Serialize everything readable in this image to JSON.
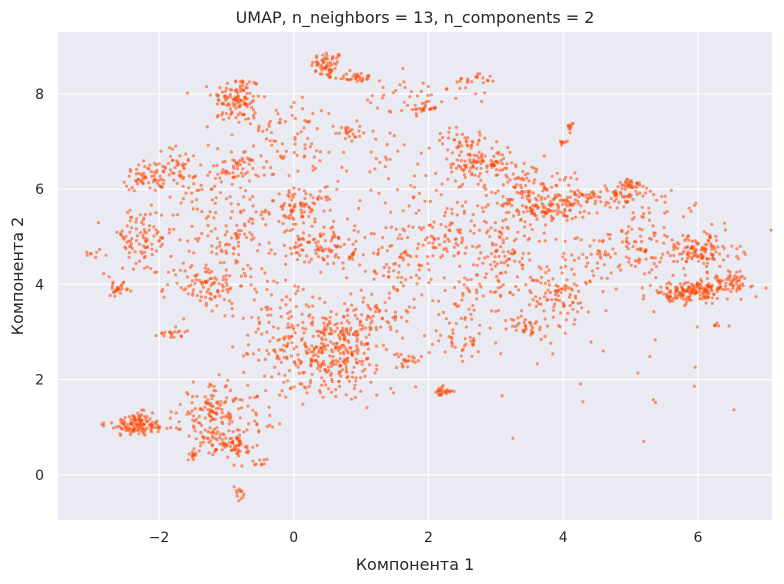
{
  "chart_data": {
    "type": "scatter",
    "title": "UMAP, n_neighbors = 13, n_components = 2",
    "xlabel": "Компонента 1",
    "ylabel": "Компонента 2",
    "xlim": [
      -3.5,
      7.1
    ],
    "ylim": [
      -0.95,
      9.3
    ],
    "xticks": [
      -2,
      0,
      2,
      4,
      6
    ],
    "yticks": [
      0,
      2,
      4,
      6,
      8
    ],
    "xtick_labels": [
      "−2",
      "0",
      "2",
      "4",
      "6"
    ],
    "ytick_labels": [
      "0",
      "2",
      "4",
      "6",
      "8"
    ],
    "grid": true,
    "background_color": "#eaeaf2",
    "point_color": "#ff4500",
    "clusters": [
      {
        "cx": 0.5,
        "cy": 8.6,
        "sx": 0.12,
        "sy": 0.15,
        "n": 60
      },
      {
        "cx": 0.9,
        "cy": 8.35,
        "sx": 0.15,
        "sy": 0.05,
        "n": 30
      },
      {
        "cx": -0.85,
        "cy": 7.9,
        "sx": 0.18,
        "sy": 0.25,
        "n": 110
      },
      {
        "cx": 2.7,
        "cy": 8.3,
        "sx": 0.15,
        "sy": 0.08,
        "n": 20
      },
      {
        "cx": 1.9,
        "cy": 7.7,
        "sx": 0.12,
        "sy": 0.06,
        "n": 25
      },
      {
        "cx": 0.8,
        "cy": 7.2,
        "sx": 0.1,
        "sy": 0.1,
        "n": 25
      },
      {
        "cx": -1.8,
        "cy": 6.5,
        "sx": 0.2,
        "sy": 0.2,
        "n": 50
      },
      {
        "cx": -2.2,
        "cy": 6.2,
        "sx": 0.15,
        "sy": 0.12,
        "n": 45
      },
      {
        "cx": -0.9,
        "cy": 6.4,
        "sx": 0.2,
        "sy": 0.15,
        "n": 40
      },
      {
        "cx": 0.1,
        "cy": 5.6,
        "sx": 0.25,
        "sy": 0.2,
        "n": 90
      },
      {
        "cx": 0.4,
        "cy": 4.8,
        "sx": 0.25,
        "sy": 0.2,
        "n": 90
      },
      {
        "cx": -0.8,
        "cy": 5.0,
        "sx": 0.3,
        "sy": 0.35,
        "n": 80
      },
      {
        "cx": -2.3,
        "cy": 4.9,
        "sx": 0.25,
        "sy": 0.35,
        "n": 100
      },
      {
        "cx": -2.6,
        "cy": 3.9,
        "sx": 0.08,
        "sy": 0.06,
        "n": 25
      },
      {
        "cx": -1.3,
        "cy": 4.0,
        "sx": 0.3,
        "sy": 0.25,
        "n": 100
      },
      {
        "cx": -1.8,
        "cy": 3.0,
        "sx": 0.1,
        "sy": 0.08,
        "n": 20
      },
      {
        "cx": 0.5,
        "cy": 2.6,
        "sx": 0.45,
        "sy": 0.35,
        "n": 300
      },
      {
        "cx": 1.1,
        "cy": 3.3,
        "sx": 0.35,
        "sy": 0.25,
        "n": 90
      },
      {
        "cx": 1.7,
        "cy": 2.4,
        "sx": 0.1,
        "sy": 0.06,
        "n": 20
      },
      {
        "cx": 2.2,
        "cy": 1.75,
        "sx": 0.08,
        "sy": 0.05,
        "n": 25
      },
      {
        "cx": 2.5,
        "cy": 2.8,
        "sx": 0.25,
        "sy": 0.2,
        "n": 40
      },
      {
        "cx": 1.4,
        "cy": 4.5,
        "sx": 0.4,
        "sy": 0.4,
        "n": 80
      },
      {
        "cx": 2.3,
        "cy": 5.0,
        "sx": 0.3,
        "sy": 0.4,
        "n": 80
      },
      {
        "cx": 2.8,
        "cy": 6.5,
        "sx": 0.25,
        "sy": 0.15,
        "n": 90
      },
      {
        "cx": 2.5,
        "cy": 7.0,
        "sx": 0.2,
        "sy": 0.12,
        "n": 40
      },
      {
        "cx": 3.5,
        "cy": 6.1,
        "sx": 0.35,
        "sy": 0.25,
        "n": 90
      },
      {
        "cx": 3.7,
        "cy": 5.6,
        "sx": 0.25,
        "sy": 0.15,
        "n": 90
      },
      {
        "cx": 4.6,
        "cy": 5.8,
        "sx": 0.35,
        "sy": 0.15,
        "n": 100
      },
      {
        "cx": 5.0,
        "cy": 6.1,
        "sx": 0.08,
        "sy": 0.06,
        "n": 30
      },
      {
        "cx": 4.1,
        "cy": 7.3,
        "sx": 0.03,
        "sy": 0.04,
        "n": 10
      },
      {
        "cx": 4.0,
        "cy": 7.0,
        "sx": 0.03,
        "sy": 0.03,
        "n": 8
      },
      {
        "cx": 3.2,
        "cy": 4.5,
        "sx": 0.4,
        "sy": 0.4,
        "n": 80
      },
      {
        "cx": 3.9,
        "cy": 3.7,
        "sx": 0.25,
        "sy": 0.25,
        "n": 80
      },
      {
        "cx": 3.5,
        "cy": 3.1,
        "sx": 0.15,
        "sy": 0.1,
        "n": 30
      },
      {
        "cx": 4.5,
        "cy": 4.5,
        "sx": 0.3,
        "sy": 0.3,
        "n": 50
      },
      {
        "cx": 5.1,
        "cy": 4.7,
        "sx": 0.25,
        "sy": 0.3,
        "n": 40
      },
      {
        "cx": 6.0,
        "cy": 4.7,
        "sx": 0.3,
        "sy": 0.2,
        "n": 130
      },
      {
        "cx": 6.1,
        "cy": 3.9,
        "sx": 0.3,
        "sy": 0.12,
        "n": 130
      },
      {
        "cx": 5.7,
        "cy": 3.8,
        "sx": 0.2,
        "sy": 0.1,
        "n": 60
      },
      {
        "cx": 6.55,
        "cy": 4.1,
        "sx": 0.1,
        "sy": 0.1,
        "n": 30
      },
      {
        "cx": -2.3,
        "cy": 1.05,
        "sx": 0.25,
        "sy": 0.12,
        "n": 130
      },
      {
        "cx": -1.2,
        "cy": 1.3,
        "sx": 0.25,
        "sy": 0.3,
        "n": 130
      },
      {
        "cx": -1.1,
        "cy": 0.7,
        "sx": 0.2,
        "sy": 0.15,
        "n": 60
      },
      {
        "cx": -0.8,
        "cy": 0.5,
        "sx": 0.1,
        "sy": 0.06,
        "n": 20
      },
      {
        "cx": -0.8,
        "cy": -0.4,
        "sx": 0.05,
        "sy": 0.08,
        "n": 12
      },
      {
        "cx": -1.5,
        "cy": 0.4,
        "sx": 0.05,
        "sy": 0.05,
        "n": 12
      },
      {
        "cx": -0.5,
        "cy": 0.25,
        "sx": 0.04,
        "sy": 0.04,
        "n": 8
      },
      {
        "cx": -0.2,
        "cy": 6.7,
        "sx": 0.4,
        "sy": 0.4,
        "n": 60
      },
      {
        "cx": 1.5,
        "cy": 6.2,
        "sx": 0.5,
        "sy": 0.6,
        "n": 60
      },
      {
        "cx": -0.3,
        "cy": 3.5,
        "sx": 0.4,
        "sy": 0.4,
        "n": 60
      },
      {
        "cx": 2.6,
        "cy": 3.8,
        "sx": 0.4,
        "sy": 0.4,
        "n": 60
      },
      {
        "cx": -1.3,
        "cy": 5.8,
        "sx": 0.3,
        "sy": 0.4,
        "n": 60
      },
      {
        "cx": 1.8,
        "cy": 8.0,
        "sx": 0.6,
        "sy": 0.2,
        "n": 35
      },
      {
        "cx": -0.3,
        "cy": 7.4,
        "sx": 0.4,
        "sy": 0.3,
        "n": 40
      },
      {
        "cx": 5.3,
        "cy": 5.3,
        "sx": 0.4,
        "sy": 0.3,
        "n": 40
      },
      {
        "cx": 3.0,
        "cy": 5.5,
        "sx": 0.5,
        "sy": 0.5,
        "n": 60
      },
      {
        "cx": 0.5,
        "cy": 1.8,
        "sx": 0.5,
        "sy": 0.2,
        "n": 40
      },
      {
        "cx": -0.5,
        "cy": 1.0,
        "sx": 0.3,
        "sy": 0.3,
        "n": 25
      },
      {
        "cx": -3.0,
        "cy": 4.65,
        "sx": 0.05,
        "sy": 0.05,
        "n": 6
      },
      {
        "cx": 4.5,
        "cy": 2.5,
        "sx": 1.0,
        "sy": 1.0,
        "n": 30
      },
      {
        "cx": 6.3,
        "cy": 3.1,
        "sx": 0.05,
        "sy": 0.05,
        "n": 5
      }
    ]
  }
}
